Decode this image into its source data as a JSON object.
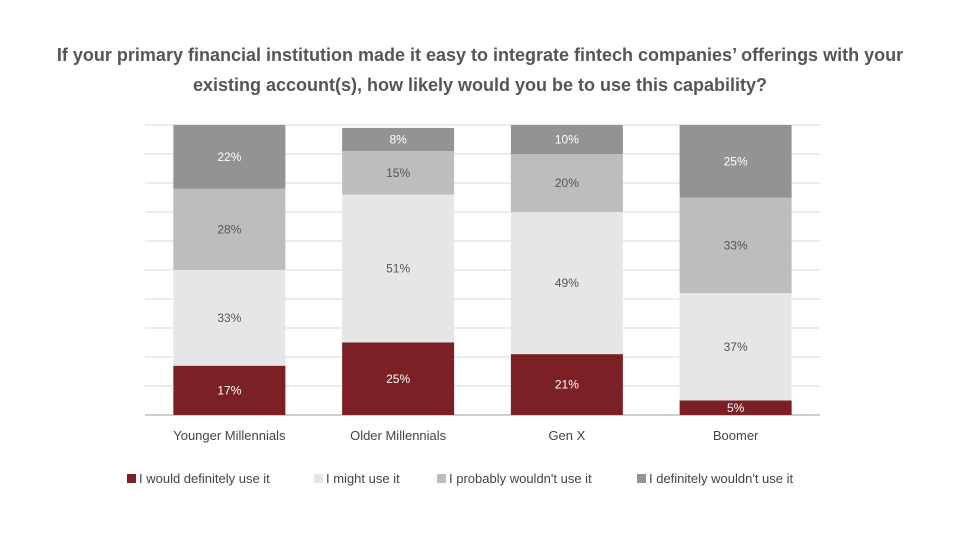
{
  "chart_data": {
    "type": "bar",
    "stacked": true,
    "title_lines": [
      "If your primary financial institution made it easy to integrate fintech companies’ offerings with your",
      "existing account(s), how likely would you be to use this capability?"
    ],
    "categories": [
      "Younger Millennials",
      "Older Millennials",
      "Gen X",
      "Boomer"
    ],
    "series": [
      {
        "name": "I would definitely use it",
        "color": "#7b2126",
        "label_color": "#ffffff",
        "values": [
          17,
          25,
          21,
          5
        ],
        "labels": [
          "17%",
          "25%",
          "21%",
          "5%"
        ]
      },
      {
        "name": "I might use it",
        "color": "#e6e6e8",
        "label_color": "#555555",
        "values": [
          33,
          51,
          49,
          37
        ],
        "labels": [
          "33%",
          "51%",
          "49%",
          "37%"
        ]
      },
      {
        "name": "I probably wouldn't use it",
        "color": "#bdbdbf",
        "label_color": "#555555",
        "values": [
          28,
          15,
          20,
          33
        ],
        "labels": [
          "28%",
          "15%",
          "20%",
          "33%"
        ]
      },
      {
        "name": "I definitely wouldn't use it",
        "color": "#939396",
        "label_color": "#ffffff",
        "values": [
          22,
          8,
          10,
          25
        ],
        "labels": [
          "22%",
          "8%",
          "10%",
          "25%"
        ]
      }
    ],
    "ylim": [
      0,
      100
    ],
    "grid": true,
    "legend_position": "bottom"
  }
}
